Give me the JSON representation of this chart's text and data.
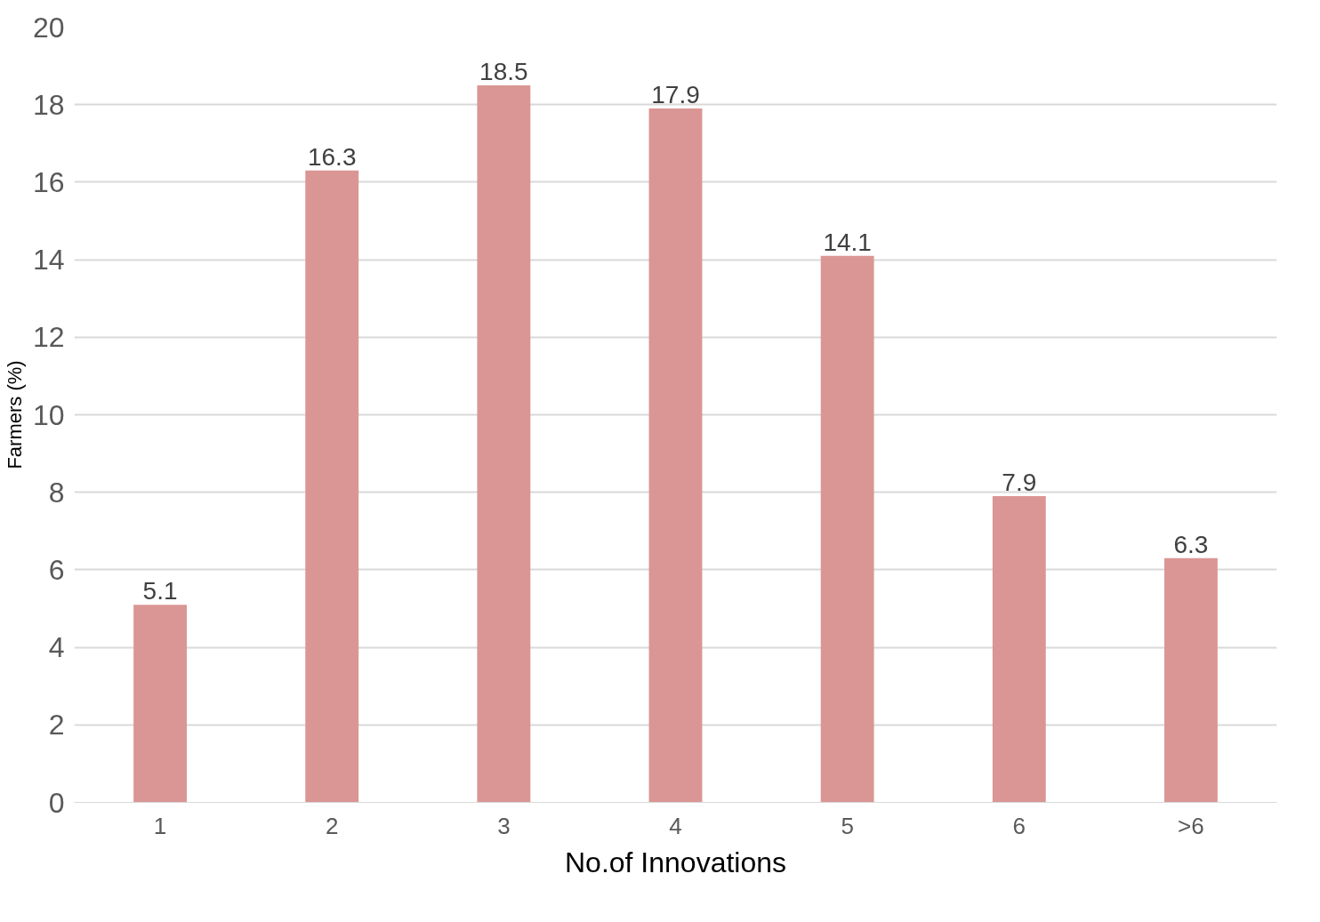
{
  "chart_data": {
    "type": "bar",
    "xlabel": "No.of Innovations",
    "ylabel": "Farmers (%)",
    "categories": [
      "1",
      "2",
      "3",
      "4",
      "5",
      "6",
      ">6"
    ],
    "values": [
      5.1,
      16.3,
      18.5,
      17.9,
      14.1,
      7.9,
      6.3
    ],
    "color": "#da9694",
    "ylim": [
      0,
      20
    ],
    "yticks": [
      0,
      2,
      4,
      6,
      8,
      10,
      12,
      14,
      16,
      18,
      20
    ],
    "grid": "y",
    "data_labels": true
  }
}
